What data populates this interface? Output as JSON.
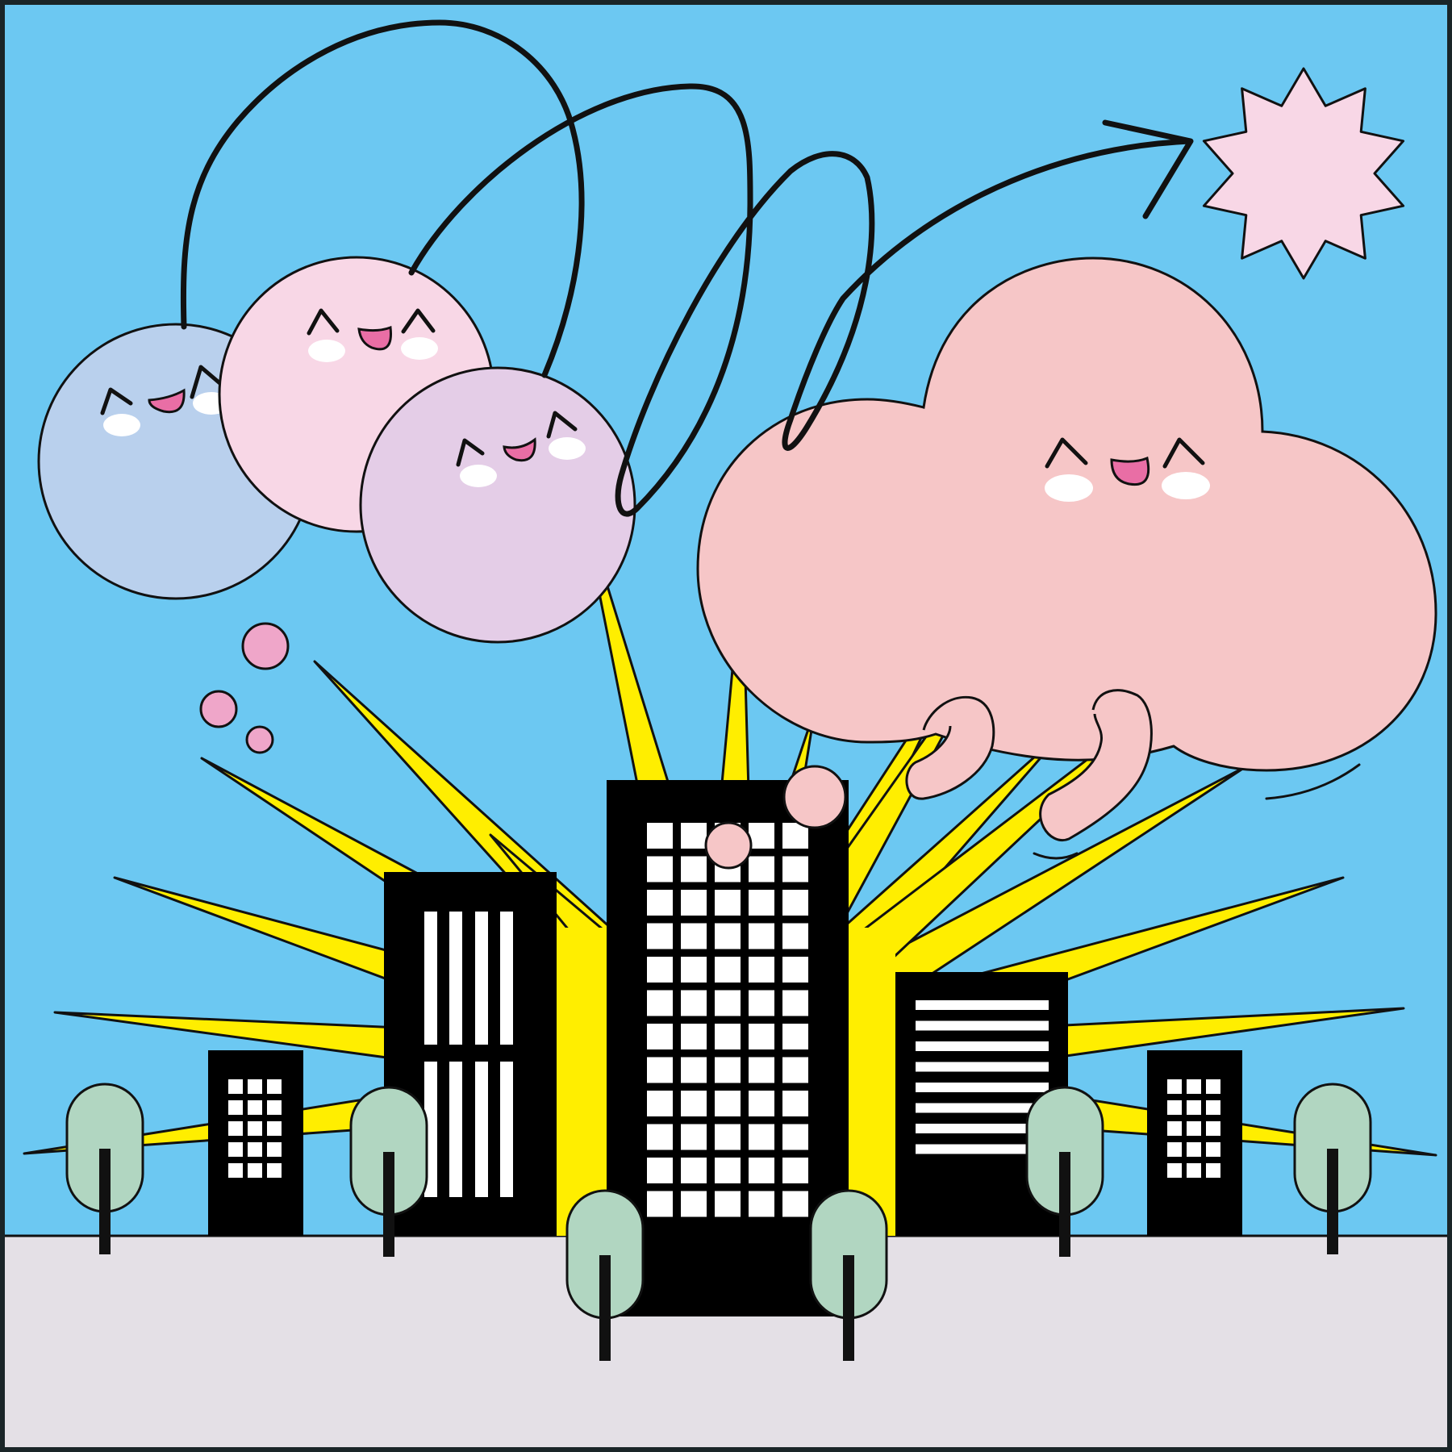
{
  "scene": {
    "colors": {
      "sky": "#6cc8f2",
      "ground": "#e4e0e6",
      "frame": "#1a2528",
      "outline": "#111111",
      "burst": "#ffee00",
      "building": "#000000",
      "window": "#ffffff",
      "tree_foliage": "#b1d6c1",
      "tree_trunk": "#111111",
      "blob_blue": "#b9d0ed",
      "blob_pink": "#f8d7e6",
      "blob_lilac": "#e4cde7",
      "cloud": "#f6c6c7",
      "bubble": "#efa6c9",
      "small_bubble": "#f6c6c7",
      "star": "#f8d7e6",
      "mouth": "#e96ea5",
      "cheek": "#ffffff"
    },
    "icons": [
      "balloon-character",
      "cloud-character",
      "star-icon",
      "arrow-icon",
      "building-icon",
      "tree-icon",
      "burst-rays"
    ]
  }
}
